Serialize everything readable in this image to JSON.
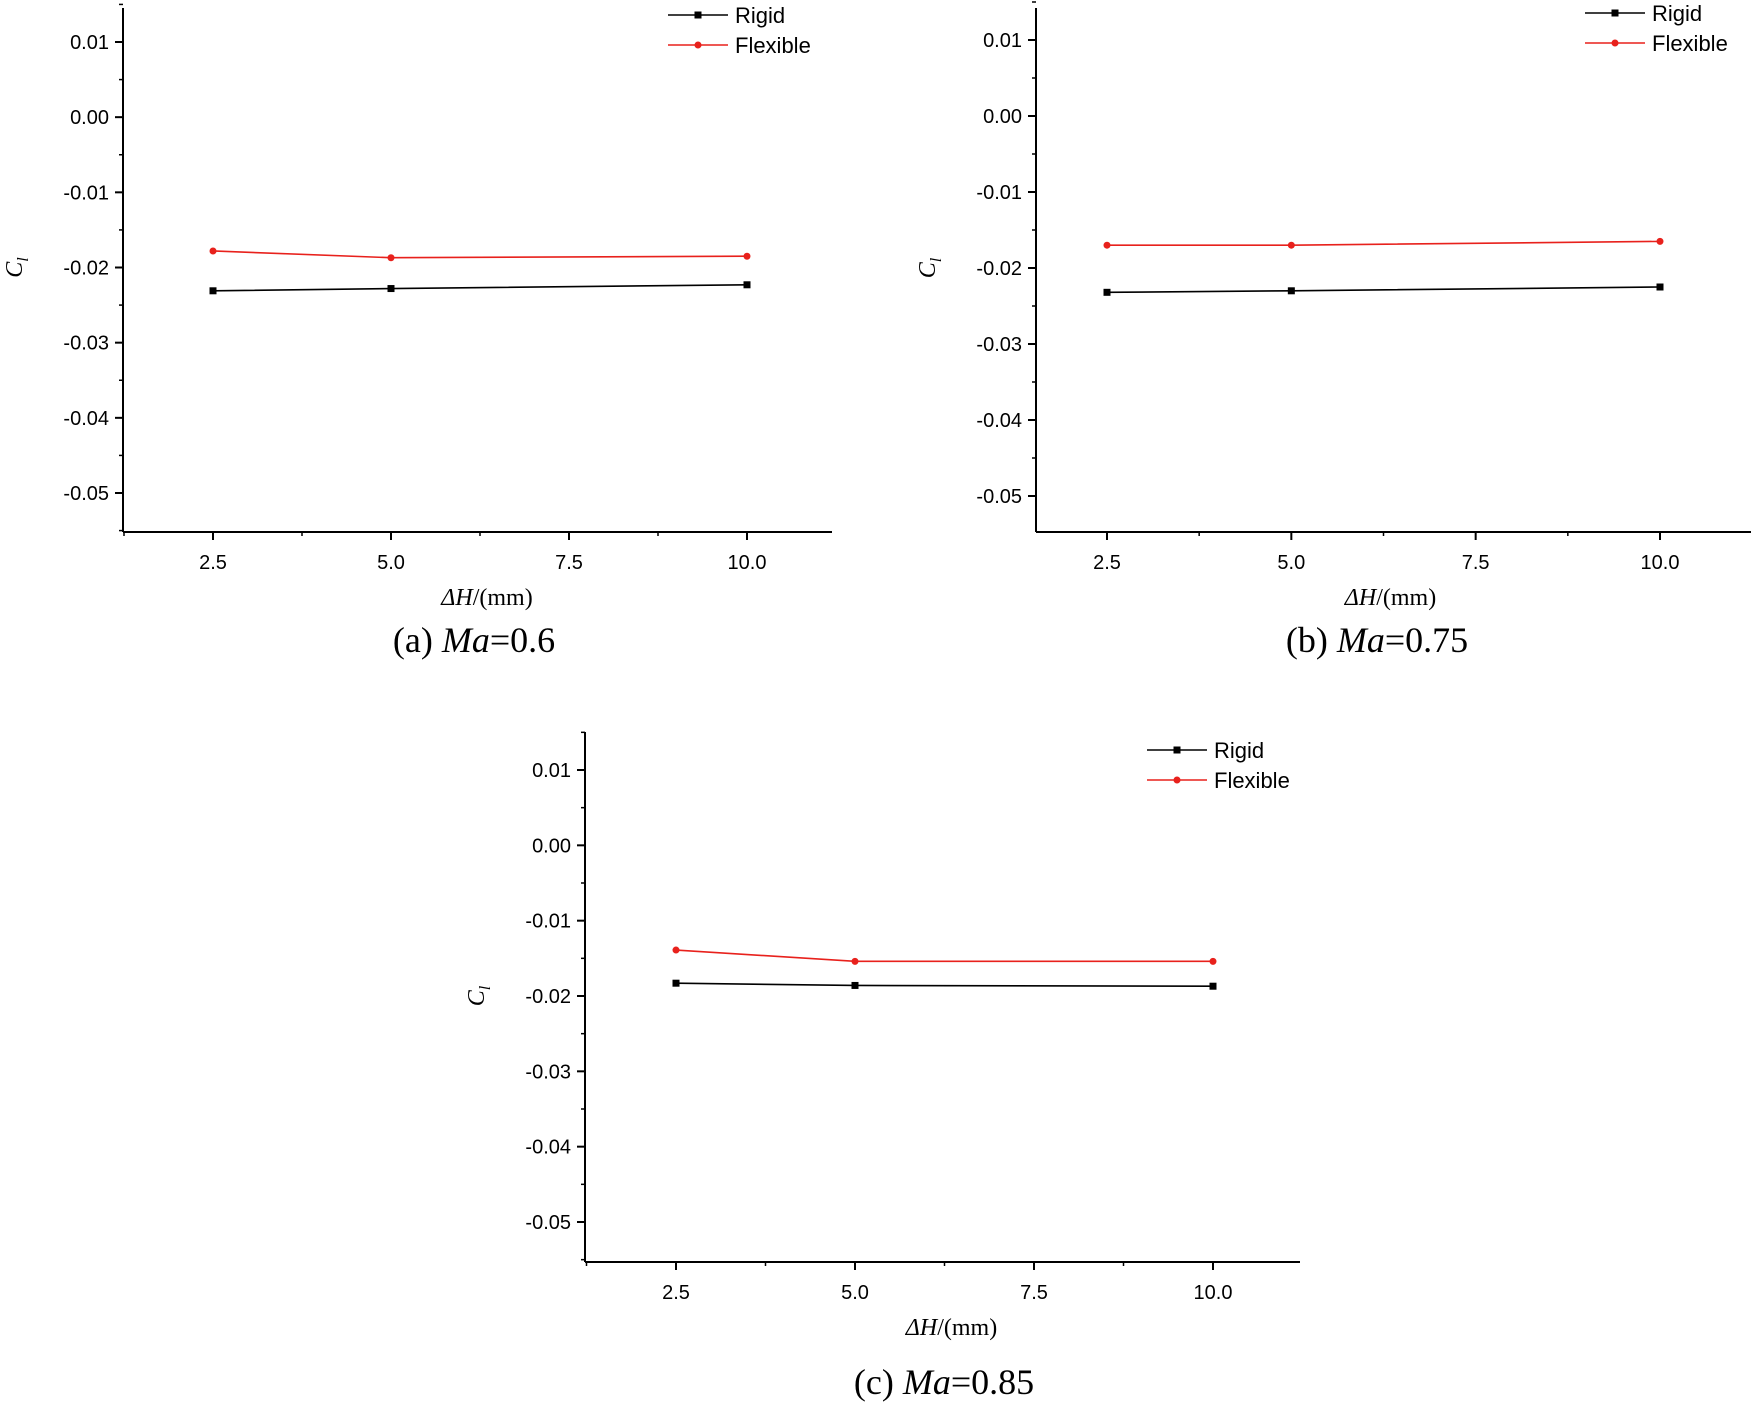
{
  "chart_data": [
    {
      "id": "a",
      "type": "line",
      "caption": {
        "prefix": "(a) ",
        "var": "Ma",
        "suffix": "=0.6"
      },
      "xlabel": {
        "var": "ΔH",
        "unit": "/(mm)"
      },
      "ylabel": {
        "var": "C",
        "sub": "l"
      },
      "x_ticks": [
        "2.5",
        "5.0",
        "7.5",
        "10.0"
      ],
      "y_ticks": [
        "0.01",
        "0.00",
        "-0.01",
        "-0.02",
        "-0.03",
        "-0.04",
        "-0.05"
      ],
      "categories": [
        "2.5",
        "5.0",
        "10.0"
      ],
      "series": [
        {
          "name": "Rigid",
          "color": "#000000",
          "marker": "square",
          "values": [
            -0.0231,
            -0.0228,
            -0.0223
          ]
        },
        {
          "name": "Flexible",
          "color": "#e8211c",
          "marker": "circle",
          "values": [
            -0.0178,
            -0.0187,
            -0.0185
          ]
        }
      ],
      "legend": "top-right",
      "ylim": [
        -0.055,
        0.015
      ]
    },
    {
      "id": "b",
      "type": "line",
      "caption": {
        "prefix": "(b) ",
        "var": "Ma",
        "suffix": "=0.75"
      },
      "xlabel": {
        "var": "ΔH",
        "unit": "/(mm)"
      },
      "ylabel": {
        "var": "C",
        "sub": "l"
      },
      "x_ticks": [
        "2.5",
        "5.0",
        "7.5",
        "10.0"
      ],
      "y_ticks": [
        "0.01",
        "0.00",
        "-0.01",
        "-0.02",
        "-0.03",
        "-0.04",
        "-0.05"
      ],
      "categories": [
        "2.5",
        "5.0",
        "10.0"
      ],
      "series": [
        {
          "name": "Rigid",
          "color": "#000000",
          "marker": "square",
          "values": [
            -0.0232,
            -0.023,
            -0.0225
          ]
        },
        {
          "name": "Flexible",
          "color": "#e8211c",
          "marker": "circle",
          "values": [
            -0.017,
            -0.017,
            -0.0165
          ]
        }
      ],
      "legend": "top-right",
      "ylim": [
        -0.055,
        0.015
      ]
    },
    {
      "id": "c",
      "type": "line",
      "caption": {
        "prefix": "(c) ",
        "var": "Ma",
        "suffix": "=0.85"
      },
      "xlabel": {
        "var": "ΔH",
        "unit": "/(mm)"
      },
      "ylabel": {
        "var": "C",
        "sub": "l"
      },
      "x_ticks": [
        "2.5",
        "5.0",
        "7.5",
        "10.0"
      ],
      "y_ticks": [
        "0.01",
        "0.00",
        "-0.01",
        "-0.02",
        "-0.03",
        "-0.04",
        "-0.05"
      ],
      "categories": [
        "2.5",
        "5.0",
        "10.0"
      ],
      "series": [
        {
          "name": "Rigid",
          "color": "#000000",
          "marker": "square",
          "values": [
            -0.0183,
            -0.0186,
            -0.0187
          ]
        },
        {
          "name": "Flexible",
          "color": "#e8211c",
          "marker": "circle",
          "values": [
            -0.0139,
            -0.0154,
            -0.0154
          ]
        }
      ],
      "legend": "top-right",
      "ylim": [
        -0.055,
        0.015
      ]
    }
  ]
}
